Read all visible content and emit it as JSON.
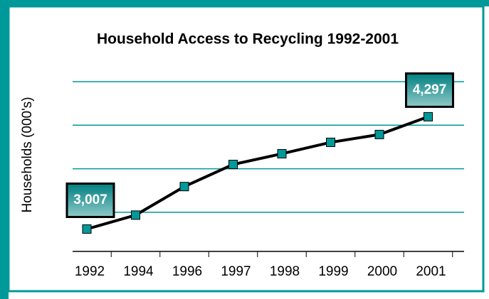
{
  "chart_data": {
    "type": "line",
    "title": "Household Access to Recycling 1992-2001",
    "y_label": "Households (000's)",
    "categories": [
      "1992",
      "1994",
      "1996",
      "1997",
      "1998",
      "1999",
      "2000",
      "2001"
    ],
    "series": [
      {
        "name": "Households",
        "color": "#000000",
        "values": [
          3007,
          3167,
          3495,
          3749,
          3872,
          4003,
          4093,
          4297
        ],
        "value_labels": [
          "3,007",
          null,
          null,
          null,
          null,
          null,
          null,
          "4,297"
        ]
      }
    ],
    "marker_color": "#009999",
    "grid_color": "#009999",
    "ylim": [
      2750,
      4700
    ],
    "yticks": [
      3200,
      3700,
      4200,
      4700
    ],
    "grid": true
  }
}
